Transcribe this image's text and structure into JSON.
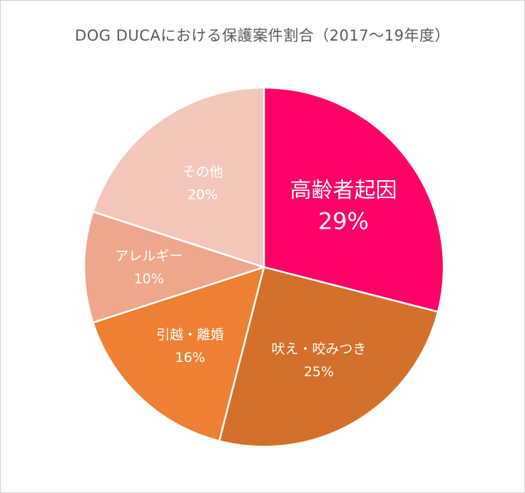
{
  "chart_data": {
    "type": "pie",
    "title": "DOG DUCAにおける保護案件割合（2017～19年度）",
    "unit": "%",
    "slices": [
      {
        "label": "高齢者起因",
        "value": 29,
        "value_label": "29%",
        "color": "#fe0066"
      },
      {
        "label": "吠え・咬みつき",
        "value": 25,
        "value_label": "25%",
        "color": "#d5702b"
      },
      {
        "label": "引越・離婚",
        "value": 16,
        "value_label": "16%",
        "color": "#ee8033"
      },
      {
        "label": "アレルギー",
        "value": 10,
        "value_label": "10%",
        "color": "#efa78b"
      },
      {
        "label": "その他",
        "value": 20,
        "value_label": "20%",
        "color": "#f4c6b9"
      }
    ]
  }
}
